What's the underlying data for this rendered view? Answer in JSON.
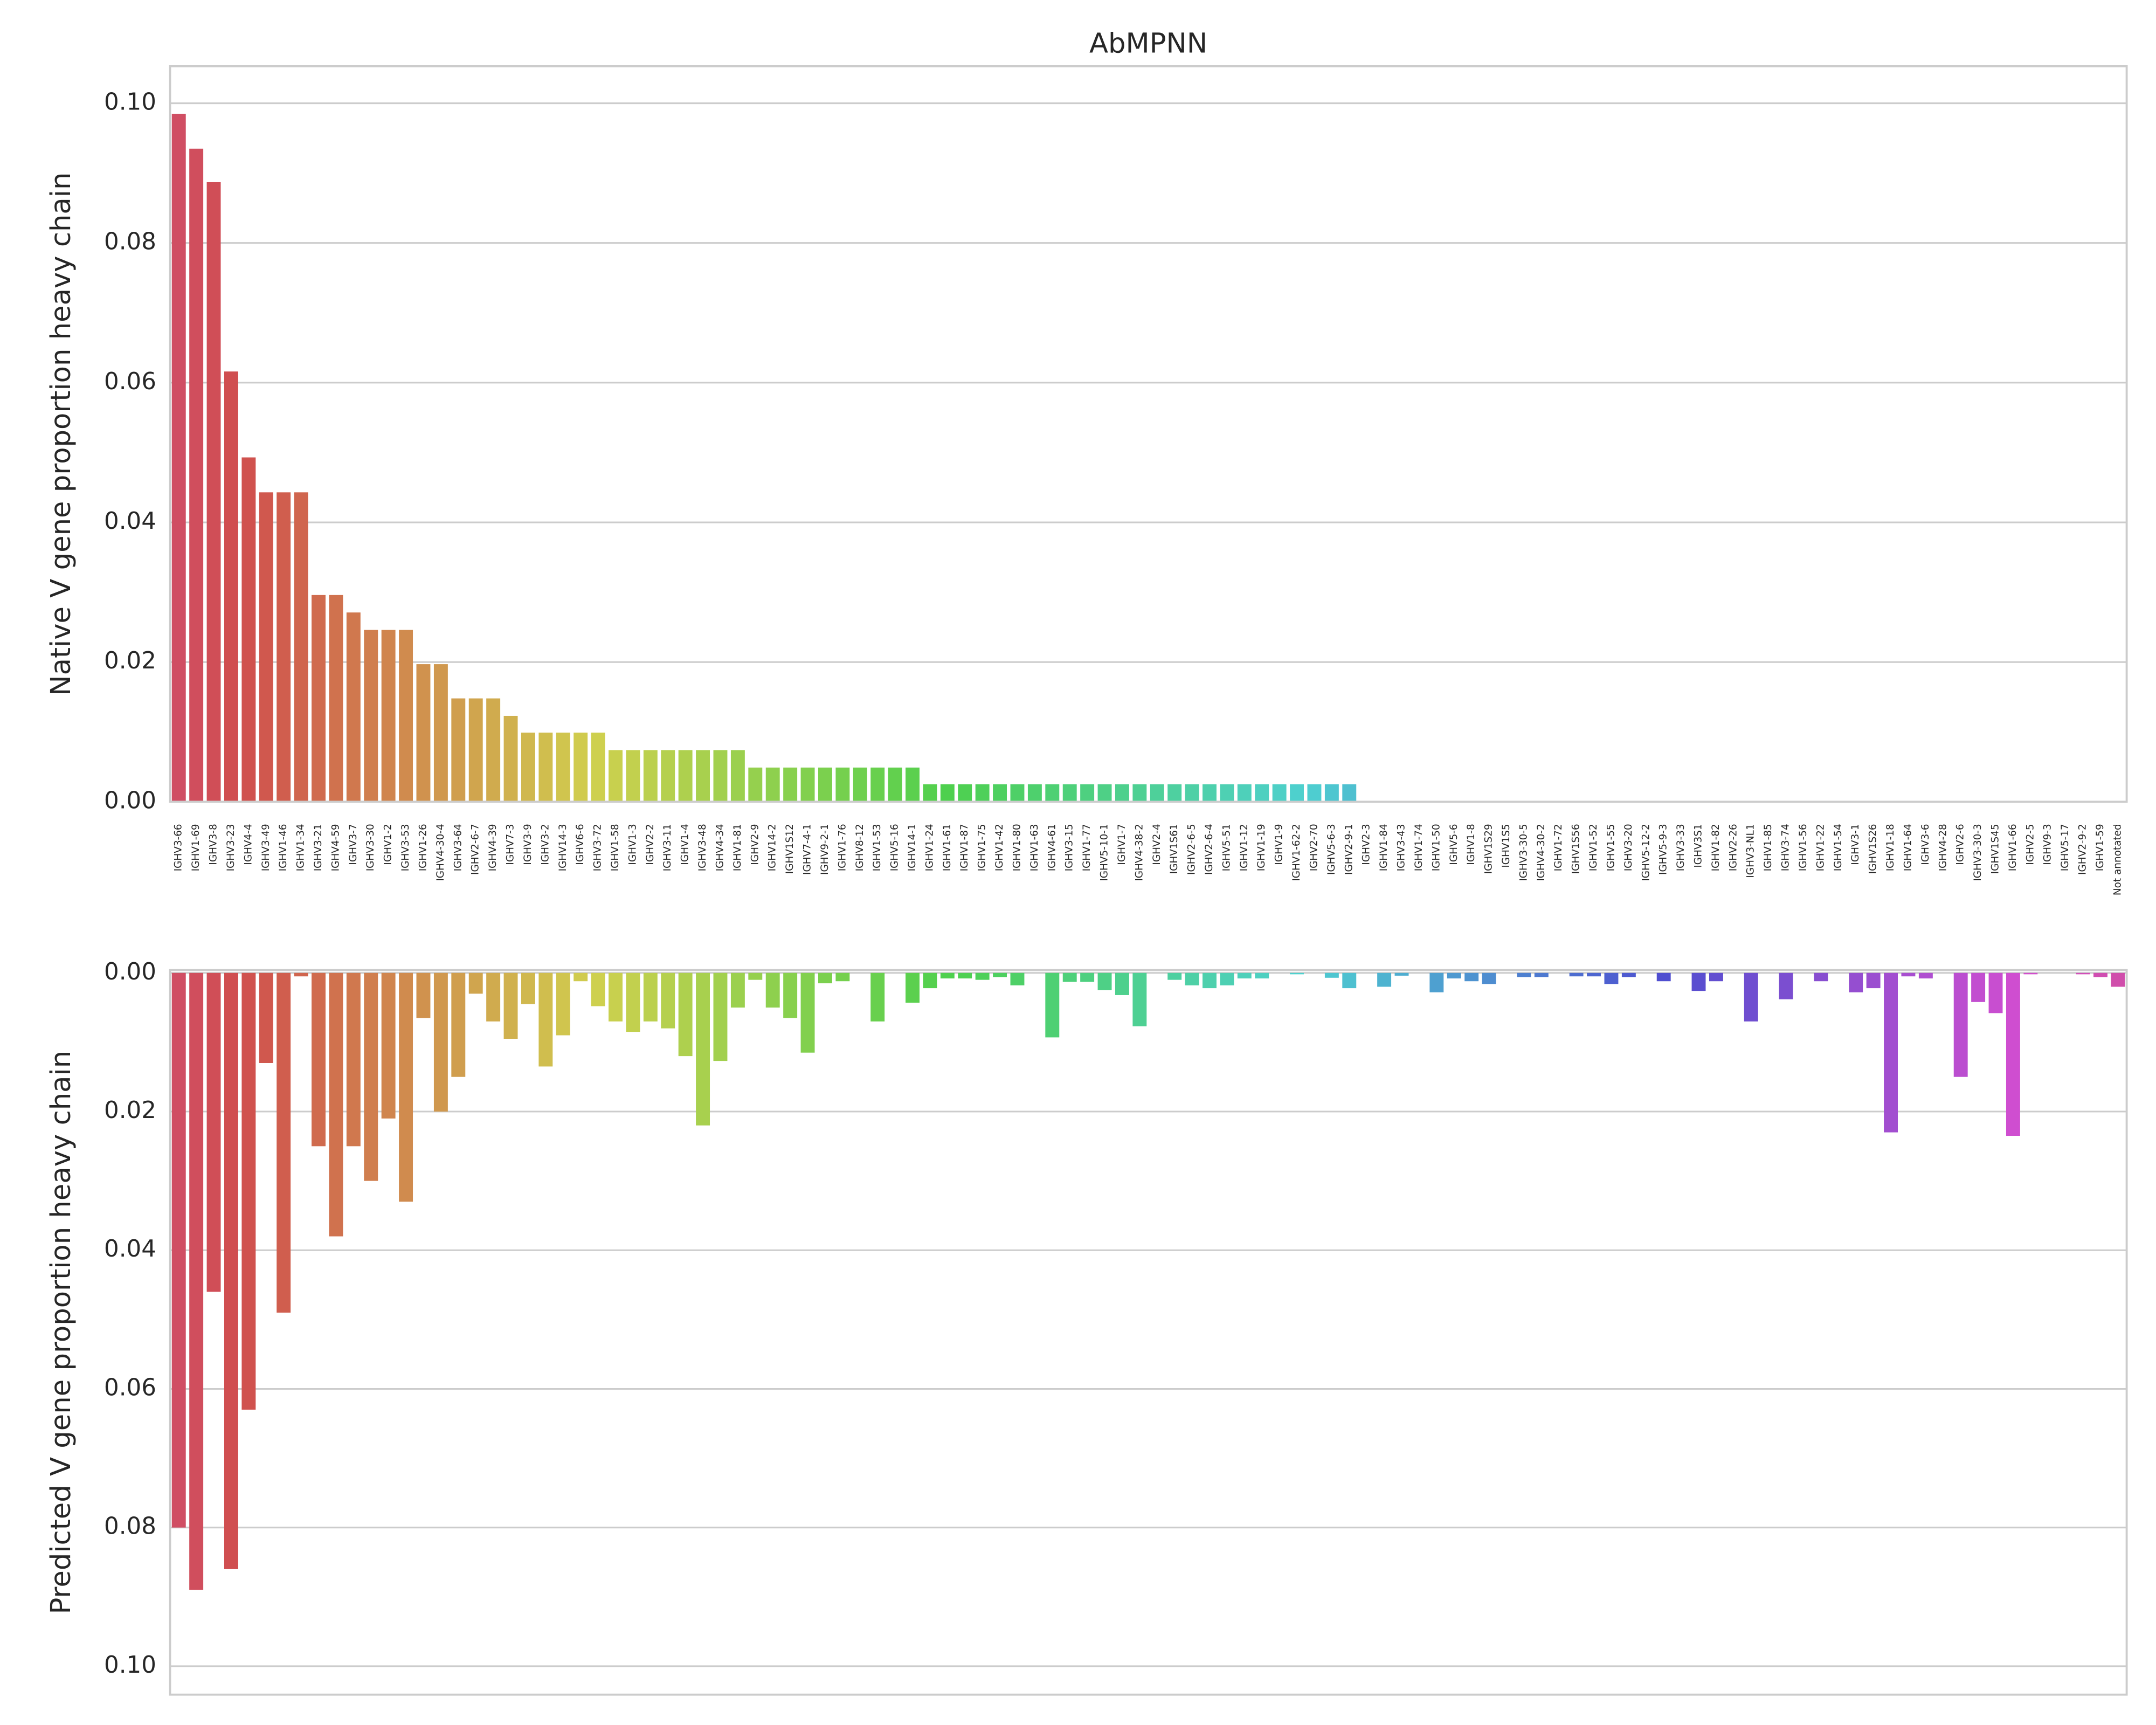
{
  "chart_data": [
    {
      "type": "bar",
      "title": "AbMPNN",
      "ylabel": "Native V gene proportion heavy chain",
      "palette": "husl",
      "grid": true,
      "categories": [
        "IGHV3-66",
        "IGHV1-69",
        "IGHV3-8",
        "IGHV3-23",
        "IGHV4-4",
        "IGHV3-49",
        "IGHV1-46",
        "IGHV1-34",
        "IGHV3-21",
        "IGHV4-59",
        "IGHV3-7",
        "IGHV3-30",
        "IGHV1-2",
        "IGHV3-53",
        "IGHV1-26",
        "IGHV4-30-4",
        "IGHV3-64",
        "IGHV2-6-7",
        "IGHV4-39",
        "IGHV7-3",
        "IGHV3-9",
        "IGHV3-2",
        "IGHV14-3",
        "IGHV6-6",
        "IGHV3-72",
        "IGHV1-58",
        "IGHV1-3",
        "IGHV2-2",
        "IGHV3-11",
        "IGHV1-4",
        "IGHV3-48",
        "IGHV4-34",
        "IGHV1-81",
        "IGHV2-9",
        "IGHV14-2",
        "IGHV1S12",
        "IGHV7-4-1",
        "IGHV9-2-1",
        "IGHV1-76",
        "IGHV8-12",
        "IGHV1-53",
        "IGHV5-16",
        "IGHV14-1",
        "IGHV1-24",
        "IGHV1-61",
        "IGHV1-87",
        "IGHV1-75",
        "IGHV1-42",
        "IGHV1-80",
        "IGHV1-63",
        "IGHV4-61",
        "IGHV3-15",
        "IGHV1-77",
        "IGHV5-10-1",
        "IGHV1-7",
        "IGHV4-38-2",
        "IGHV2-4",
        "IGHV1S61",
        "IGHV2-6-5",
        "IGHV2-6-4",
        "IGHV5-51",
        "IGHV1-12",
        "IGHV1-19",
        "IGHV1-9",
        "IGHV1-62-2",
        "IGHV2-70",
        "IGHV5-6-3",
        "IGHV2-9-1",
        "IGHV2-3",
        "IGHV1-84",
        "IGHV3-43",
        "IGHV1-74",
        "IGHV1-50",
        "IGHV5-6",
        "IGHV1-8",
        "IGHV1S29",
        "IGHV1S5",
        "IGHV3-30-5",
        "IGHV4-30-2",
        "IGHV1-72",
        "IGHV1S56",
        "IGHV1-52",
        "IGHV1-55",
        "IGHV3-20",
        "IGHV5-12-2",
        "IGHV5-9-3",
        "IGHV3-33",
        "IGHV3S1",
        "IGHV1-82",
        "IGHV2-26",
        "IGHV3-NL1",
        "IGHV1-85",
        "IGHV3-74",
        "IGHV1-56",
        "IGHV1-22",
        "IGHV1-54",
        "IGHV3-1",
        "IGHV1S26",
        "IGHV1-18",
        "IGHV1-64",
        "IGHV3-6",
        "IGHV4-28",
        "IGHV2-6",
        "IGHV3-30-3",
        "IGHV1S45",
        "IGHV1-66",
        "IGHV2-5",
        "IGHV9-3",
        "IGHV5-17",
        "IGHV2-9-2",
        "IGHV1-59",
        "Not annotated"
      ],
      "values": [
        0.0985,
        0.0935,
        0.0887,
        0.0616,
        0.0493,
        0.0443,
        0.0443,
        0.0443,
        0.0296,
        0.0296,
        0.0271,
        0.0246,
        0.0246,
        0.0246,
        0.0197,
        0.0197,
        0.0148,
        0.0148,
        0.0148,
        0.0123,
        0.0099,
        0.0099,
        0.0099,
        0.0099,
        0.0099,
        0.0074,
        0.0074,
        0.0074,
        0.0074,
        0.0074,
        0.0074,
        0.0074,
        0.0074,
        0.0049,
        0.0049,
        0.0049,
        0.0049,
        0.0049,
        0.0049,
        0.0049,
        0.0049,
        0.0049,
        0.0049,
        0.0025,
        0.0025,
        0.0025,
        0.0025,
        0.0025,
        0.0025,
        0.0025,
        0.0025,
        0.0025,
        0.0025,
        0.0025,
        0.0025,
        0.0025,
        0.0025,
        0.0025,
        0.0025,
        0.0025,
        0.0025,
        0.0025,
        0.0025,
        0.0025,
        0.0025,
        0.0025,
        0.0025,
        0.0025,
        0,
        0,
        0,
        0,
        0,
        0,
        0,
        0,
        0,
        0,
        0,
        0,
        0,
        0,
        0,
        0,
        0,
        0,
        0,
        0,
        0,
        0,
        0,
        0,
        0,
        0,
        0,
        0,
        0,
        0,
        0,
        0,
        0,
        0,
        0,
        0,
        0,
        0,
        0,
        0,
        0,
        0,
        0,
        0
      ],
      "ylim": [
        0,
        0.1053
      ],
      "yticks": [
        {
          "value": 0,
          "label": "0.00"
        },
        {
          "value": 0.02,
          "label": "0.02"
        },
        {
          "value": 0.04,
          "label": "0.04"
        },
        {
          "value": 0.06,
          "label": "0.06"
        },
        {
          "value": 0.08,
          "label": "0.08"
        },
        {
          "value": 0.1,
          "label": "0.10"
        }
      ]
    },
    {
      "type": "bar",
      "ylabel": "Predicted V gene proportion heavy chain",
      "palette": "husl",
      "grid": true,
      "inverted": true,
      "values": [
        0.08,
        0.089,
        0.046,
        0.086,
        0.063,
        0.013,
        0.049,
        0.0005,
        0.025,
        0.038,
        0.025,
        0.03,
        0.021,
        0.033,
        0.0065,
        0.02,
        0.015,
        0.003,
        0.007,
        0.0095,
        0.0045,
        0.0135,
        0.009,
        0.0012,
        0.0048,
        0.007,
        0.0085,
        0.007,
        0.008,
        0.012,
        0.022,
        0.0127,
        0.005,
        0.001,
        0.005,
        0.0065,
        0.0115,
        0.0015,
        0.0012,
        0,
        0.007,
        0,
        0.0043,
        0.0022,
        0.0008,
        0.0008,
        0.001,
        0.0006,
        0.0018,
        0,
        0.0093,
        0.0013,
        0.0013,
        0.0025,
        0.0032,
        0.0077,
        0,
        0.001,
        0.0018,
        0.0022,
        0.0018,
        0.0008,
        0.0008,
        0,
        0.0002,
        0,
        0.0007,
        0.0022,
        0,
        0.002,
        0.0004,
        0,
        0.0028,
        0.0008,
        0.0012,
        0.0016,
        0,
        0.0006,
        0.0006,
        0,
        0.0005,
        0.0005,
        0.0016,
        0.0006,
        0,
        0.0012,
        0,
        0.0026,
        0.0012,
        0,
        0.007,
        0,
        0.0038,
        0,
        0.0012,
        0,
        0.0028,
        0.0022,
        0.023,
        0.0005,
        0.0008,
        0,
        0.015,
        0.0042,
        0.0058,
        0.0235,
        0.0002,
        0,
        0,
        0.0002,
        0.0006,
        0.002
      ],
      "ylim": [
        0,
        0.1045
      ],
      "yticks": [
        {
          "value": 0,
          "label": "0.00"
        },
        {
          "value": 0.02,
          "label": "0.02"
        },
        {
          "value": 0.04,
          "label": "0.04"
        },
        {
          "value": 0.06,
          "label": "0.06"
        },
        {
          "value": 0.08,
          "label": "0.08"
        },
        {
          "value": 0.1,
          "label": "0.10"
        }
      ]
    }
  ]
}
